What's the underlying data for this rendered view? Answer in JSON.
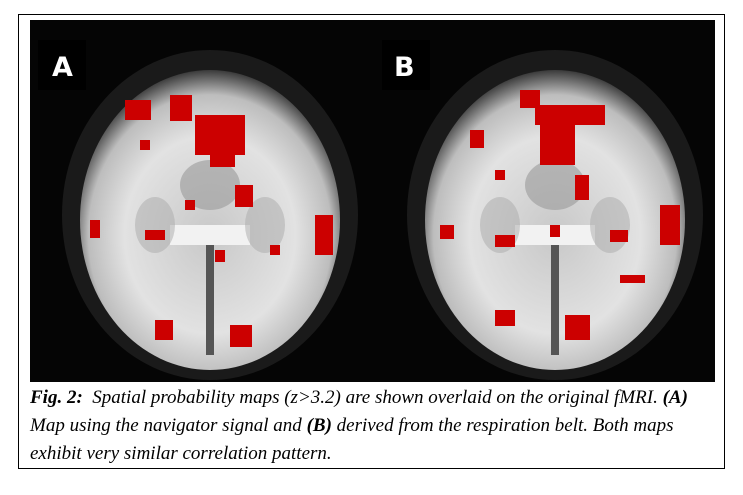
{
  "figure": {
    "panels": [
      {
        "label": "A"
      },
      {
        "label": "B"
      }
    ],
    "caption": {
      "label": "Fig. 2:",
      "text_1": "Spatial probability maps (z>3.2) are shown overlaid on the original fMRI.",
      "panel_a": "(A)",
      "text_2": "Map using the navigator signal and",
      "panel_b": "(B)",
      "text_3": "derived from the respiration belt. Both maps exhibit very similar correlation pattern."
    }
  }
}
